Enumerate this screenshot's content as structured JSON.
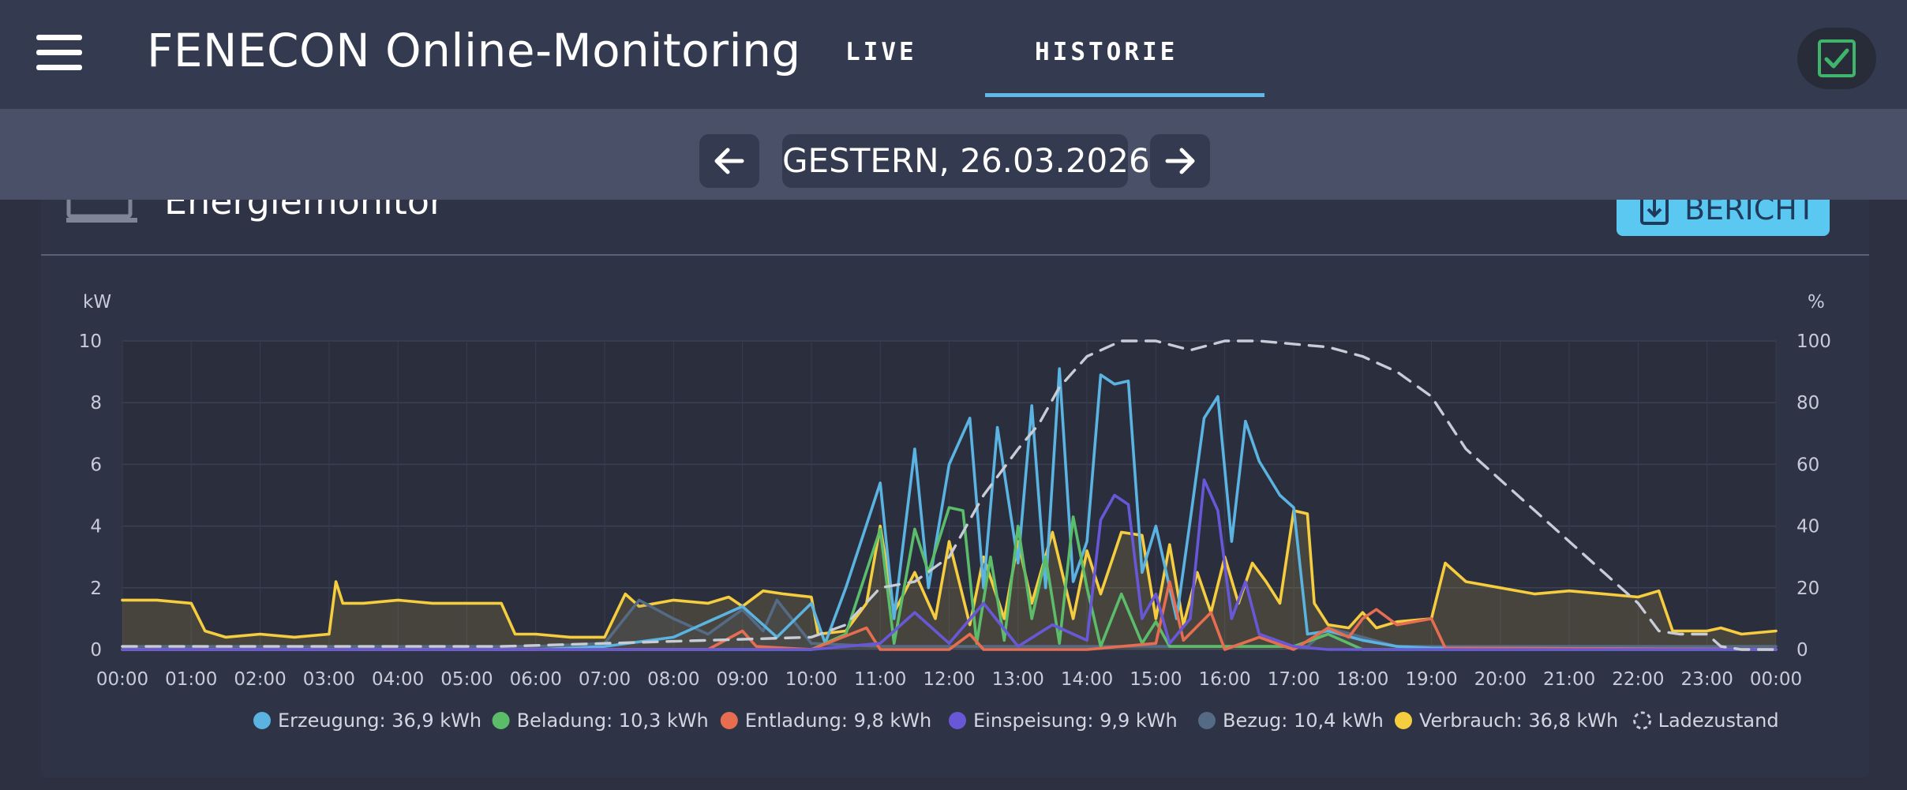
{
  "header": {
    "title": "FENECON Online-Monitoring",
    "tabs": [
      {
        "label": "LIVE",
        "active": false
      },
      {
        "label": "HISTORIE",
        "active": true
      }
    ]
  },
  "date_nav": {
    "date_label": "GESTERN, 26.03.2026"
  },
  "card": {
    "title": "Energiemonitor",
    "report_label": "BERICHT"
  },
  "colors": {
    "accent": "#5fb8e8",
    "erzeugung": "#5ab3e0",
    "beladung": "#5bbd6a",
    "entladung": "#e66d50",
    "einspeisung": "#6858d8",
    "bezug": "#556a84",
    "verbrauch": "#f5cd3f",
    "ladezustand": "#c8ccd6"
  },
  "chart_data": {
    "type": "line",
    "y_left_unit": "kW",
    "y_right_unit": "%",
    "ylim_left": [
      0,
      10
    ],
    "ylim_right": [
      0,
      100
    ],
    "y_left_ticks": [
      "0",
      "2",
      "4",
      "6",
      "8",
      "10"
    ],
    "y_right_ticks": [
      "0",
      "20",
      "40",
      "60",
      "80",
      "100"
    ],
    "x_ticks": [
      "00:00",
      "01:00",
      "02:00",
      "03:00",
      "04:00",
      "05:00",
      "06:00",
      "07:00",
      "08:00",
      "09:00",
      "10:00",
      "11:00",
      "12:00",
      "13:00",
      "14:00",
      "15:00",
      "16:00",
      "17:00",
      "18:00",
      "19:00",
      "20:00",
      "21:00",
      "22:00",
      "23:00",
      "00:00"
    ],
    "legend": [
      {
        "key": "erzeugung",
        "label": "Erzeugung: 36,9 kWh"
      },
      {
        "key": "beladung",
        "label": "Beladung: 10,3 kWh"
      },
      {
        "key": "entladung",
        "label": "Entladung: 9,8 kWh"
      },
      {
        "key": "einspeisung",
        "label": "Einspeisung: 9,9 kWh"
      },
      {
        "key": "bezug",
        "label": "Bezug: 10,4 kWh"
      },
      {
        "key": "verbrauch",
        "label": "Verbrauch: 36,8 kWh"
      },
      {
        "key": "ladezustand",
        "label": "Ladezustand"
      }
    ],
    "series": [
      {
        "key": "verbrauch",
        "name": "Verbrauch",
        "axis": "left",
        "fill": true,
        "points": [
          [
            0,
            1.6
          ],
          [
            0.5,
            1.6
          ],
          [
            1,
            1.5
          ],
          [
            1.2,
            0.6
          ],
          [
            1.5,
            0.4
          ],
          [
            2,
            0.5
          ],
          [
            2.5,
            0.4
          ],
          [
            3,
            0.5
          ],
          [
            3.1,
            2.2
          ],
          [
            3.2,
            1.5
          ],
          [
            3.5,
            1.5
          ],
          [
            4,
            1.6
          ],
          [
            4.5,
            1.5
          ],
          [
            5,
            1.5
          ],
          [
            5.5,
            1.5
          ],
          [
            5.7,
            0.5
          ],
          [
            6,
            0.5
          ],
          [
            6.5,
            0.4
          ],
          [
            7,
            0.4
          ],
          [
            7.3,
            1.8
          ],
          [
            7.5,
            1.4
          ],
          [
            8,
            1.6
          ],
          [
            8.5,
            1.5
          ],
          [
            8.8,
            1.7
          ],
          [
            9,
            1.4
          ],
          [
            9.3,
            1.9
          ],
          [
            9.6,
            1.8
          ],
          [
            10,
            1.7
          ],
          [
            10.1,
            0.5
          ],
          [
            10.5,
            0.6
          ],
          [
            10.8,
            1.5
          ],
          [
            11,
            4.0
          ],
          [
            11.2,
            1.2
          ],
          [
            11.5,
            2.5
          ],
          [
            11.8,
            1.0
          ],
          [
            12,
            3.5
          ],
          [
            12.3,
            0.8
          ],
          [
            12.5,
            3.0
          ],
          [
            12.8,
            1.0
          ],
          [
            13,
            3.5
          ],
          [
            13.2,
            1.5
          ],
          [
            13.5,
            3.8
          ],
          [
            13.8,
            1.0
          ],
          [
            14,
            3.2
          ],
          [
            14.2,
            1.8
          ],
          [
            14.5,
            3.8
          ],
          [
            14.8,
            3.7
          ],
          [
            15,
            1.0
          ],
          [
            15.2,
            3.4
          ],
          [
            15.4,
            0.8
          ],
          [
            15.6,
            2.5
          ],
          [
            15.8,
            1.2
          ],
          [
            16,
            3.0
          ],
          [
            16.2,
            1.5
          ],
          [
            16.4,
            2.8
          ],
          [
            16.6,
            2.2
          ],
          [
            16.8,
            1.5
          ],
          [
            17,
            4.5
          ],
          [
            17.2,
            4.4
          ],
          [
            17.3,
            1.5
          ],
          [
            17.5,
            0.8
          ],
          [
            17.8,
            0.7
          ],
          [
            18,
            1.2
          ],
          [
            18.2,
            0.7
          ],
          [
            18.5,
            0.9
          ],
          [
            19,
            1.0
          ],
          [
            19.2,
            2.8
          ],
          [
            19.5,
            2.2
          ],
          [
            20,
            2.0
          ],
          [
            20.5,
            1.8
          ],
          [
            21,
            1.9
          ],
          [
            21.5,
            1.8
          ],
          [
            22,
            1.7
          ],
          [
            22.3,
            1.9
          ],
          [
            22.5,
            0.6
          ],
          [
            23,
            0.6
          ],
          [
            23.2,
            0.7
          ],
          [
            23.5,
            0.5
          ],
          [
            24,
            0.6
          ]
        ]
      },
      {
        "key": "bezug",
        "name": "Bezug",
        "axis": "left",
        "fill": true,
        "points": [
          [
            0,
            0.1
          ],
          [
            6,
            0.1
          ],
          [
            7,
            0.2
          ],
          [
            7.5,
            1.6
          ],
          [
            8,
            1.0
          ],
          [
            8.5,
            0.5
          ],
          [
            9,
            1.3
          ],
          [
            9.3,
            0.6
          ],
          [
            9.5,
            1.6
          ],
          [
            10,
            0.2
          ],
          [
            11,
            0.1
          ],
          [
            17.2,
            0.1
          ],
          [
            17.5,
            0.7
          ],
          [
            18,
            0.4
          ],
          [
            18.5,
            0.1
          ],
          [
            24,
            0.1
          ]
        ]
      },
      {
        "key": "erzeugung",
        "name": "Erzeugung",
        "axis": "left",
        "fill": false,
        "points": [
          [
            0,
            0
          ],
          [
            6,
            0
          ],
          [
            7,
            0.1
          ],
          [
            8,
            0.4
          ],
          [
            8.5,
            0.9
          ],
          [
            9,
            1.4
          ],
          [
            9.5,
            0.4
          ],
          [
            10,
            1.5
          ],
          [
            10.2,
            0.2
          ],
          [
            10.5,
            2.0
          ],
          [
            11,
            5.4
          ],
          [
            11.2,
            1.0
          ],
          [
            11.5,
            6.5
          ],
          [
            11.7,
            2.0
          ],
          [
            12,
            6.0
          ],
          [
            12.3,
            7.5
          ],
          [
            12.5,
            2.0
          ],
          [
            12.7,
            7.2
          ],
          [
            13,
            2.8
          ],
          [
            13.2,
            7.9
          ],
          [
            13.4,
            2.0
          ],
          [
            13.6,
            9.1
          ],
          [
            13.8,
            2.2
          ],
          [
            14,
            3.5
          ],
          [
            14.2,
            8.9
          ],
          [
            14.4,
            8.6
          ],
          [
            14.6,
            8.7
          ],
          [
            14.8,
            2.5
          ],
          [
            15,
            4.0
          ],
          [
            15.3,
            1.0
          ],
          [
            15.5,
            4.2
          ],
          [
            15.7,
            7.5
          ],
          [
            15.9,
            8.2
          ],
          [
            16.1,
            3.5
          ],
          [
            16.3,
            7.4
          ],
          [
            16.5,
            6.1
          ],
          [
            16.8,
            5.0
          ],
          [
            17,
            4.6
          ],
          [
            17.2,
            0.5
          ],
          [
            17.5,
            0.6
          ],
          [
            18,
            0.3
          ],
          [
            18.5,
            0.1
          ],
          [
            19,
            0.05
          ],
          [
            24,
            0
          ]
        ]
      },
      {
        "key": "beladung",
        "name": "Beladung",
        "axis": "left",
        "fill": false,
        "points": [
          [
            0,
            0
          ],
          [
            10,
            0
          ],
          [
            10.5,
            0.5
          ],
          [
            11,
            3.9
          ],
          [
            11.2,
            0.2
          ],
          [
            11.5,
            3.9
          ],
          [
            11.7,
            2.5
          ],
          [
            12,
            4.6
          ],
          [
            12.2,
            4.5
          ],
          [
            12.4,
            0.2
          ],
          [
            12.6,
            3.0
          ],
          [
            12.8,
            0.3
          ],
          [
            13,
            4.0
          ],
          [
            13.2,
            1.0
          ],
          [
            13.4,
            3.0
          ],
          [
            13.6,
            0.2
          ],
          [
            13.8,
            4.3
          ],
          [
            14,
            2.0
          ],
          [
            14.2,
            0.1
          ],
          [
            14.5,
            1.8
          ],
          [
            14.8,
            0.2
          ],
          [
            15,
            0.9
          ],
          [
            15.2,
            0.1
          ],
          [
            16,
            0.1
          ],
          [
            17,
            0.1
          ],
          [
            17.5,
            0.5
          ],
          [
            18,
            0
          ],
          [
            24,
            0
          ]
        ]
      },
      {
        "key": "entladung",
        "name": "Entladung",
        "axis": "left",
        "fill": false,
        "points": [
          [
            0,
            0
          ],
          [
            8.5,
            0
          ],
          [
            9,
            0.6
          ],
          [
            9.2,
            0.1
          ],
          [
            10,
            0
          ],
          [
            10.8,
            0.7
          ],
          [
            11,
            0
          ],
          [
            12,
            0
          ],
          [
            12.3,
            0.5
          ],
          [
            12.5,
            0
          ],
          [
            14,
            0
          ],
          [
            15,
            0.2
          ],
          [
            15.2,
            2.2
          ],
          [
            15.4,
            0.3
          ],
          [
            15.8,
            1.2
          ],
          [
            16,
            0
          ],
          [
            16.5,
            0.4
          ],
          [
            17,
            0
          ],
          [
            17.5,
            0.7
          ],
          [
            17.8,
            0.4
          ],
          [
            18,
            1.0
          ],
          [
            18.2,
            1.3
          ],
          [
            18.5,
            0.8
          ],
          [
            19,
            1.0
          ],
          [
            19.2,
            0.05
          ],
          [
            24,
            0
          ]
        ]
      },
      {
        "key": "einspeisung",
        "name": "Einspeisung",
        "axis": "left",
        "fill": false,
        "points": [
          [
            0,
            0
          ],
          [
            10,
            0
          ],
          [
            11,
            0.2
          ],
          [
            11.5,
            1.2
          ],
          [
            12,
            0.2
          ],
          [
            12.5,
            1.5
          ],
          [
            13,
            0.1
          ],
          [
            13.5,
            0.8
          ],
          [
            14,
            0.3
          ],
          [
            14.2,
            4.2
          ],
          [
            14.4,
            5.0
          ],
          [
            14.6,
            4.7
          ],
          [
            14.8,
            1.0
          ],
          [
            15,
            1.8
          ],
          [
            15.2,
            0.2
          ],
          [
            15.5,
            1.0
          ],
          [
            15.7,
            5.5
          ],
          [
            15.9,
            4.5
          ],
          [
            16.1,
            1.0
          ],
          [
            16.3,
            2.2
          ],
          [
            16.5,
            0.5
          ],
          [
            17,
            0.1
          ],
          [
            17.5,
            0
          ],
          [
            24,
            0
          ]
        ]
      },
      {
        "key": "ladezustand",
        "name": "Ladezustand",
        "axis": "right",
        "dashed": true,
        "points": [
          [
            0,
            1
          ],
          [
            5.5,
            1
          ],
          [
            10,
            4
          ],
          [
            10.5,
            8
          ],
          [
            11,
            20
          ],
          [
            11.5,
            22
          ],
          [
            12,
            30
          ],
          [
            12.5,
            50
          ],
          [
            13,
            65
          ],
          [
            13.3,
            73
          ],
          [
            13.6,
            85
          ],
          [
            14,
            95
          ],
          [
            14.5,
            100
          ],
          [
            15,
            100
          ],
          [
            15.5,
            97
          ],
          [
            16,
            100
          ],
          [
            16.5,
            100
          ],
          [
            17,
            99
          ],
          [
            17.5,
            98
          ],
          [
            18,
            95
          ],
          [
            18.5,
            90
          ],
          [
            19,
            82
          ],
          [
            19.5,
            65
          ],
          [
            20,
            55
          ],
          [
            20.5,
            45
          ],
          [
            21,
            35
          ],
          [
            21.5,
            25
          ],
          [
            22,
            15
          ],
          [
            22.3,
            6
          ],
          [
            22.6,
            5
          ],
          [
            23,
            5
          ],
          [
            23.2,
            1
          ],
          [
            23.5,
            0
          ],
          [
            24,
            0
          ]
        ]
      }
    ]
  }
}
